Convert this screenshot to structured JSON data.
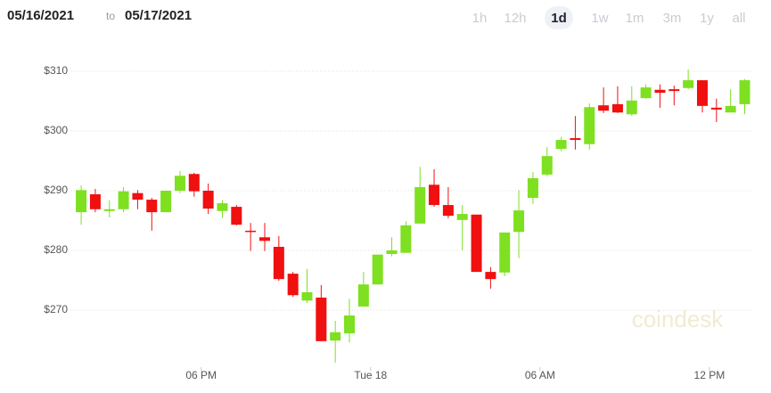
{
  "header": {
    "from": "05/16/2021",
    "sep": "to",
    "to": "05/17/2021",
    "buttons": [
      "1h",
      "12h",
      "1d",
      "1w",
      "1m",
      "3m",
      "1y",
      "all"
    ],
    "selected": "1d"
  },
  "watermark": "coindesk",
  "chart_data": {
    "type": "candlestick",
    "x": [
      13.75,
      14.25,
      14.75,
      15.25,
      15.75,
      16.25,
      16.75,
      17.25,
      17.75,
      18.25,
      18.75,
      19.25,
      19.75,
      20.25,
      20.75,
      21.25,
      21.75,
      22.25,
      22.75,
      23.25,
      23.75,
      24.25,
      24.75,
      25.25,
      25.75,
      26.25,
      26.75,
      27.25,
      27.75,
      28.25,
      28.75,
      29.25,
      29.75,
      30.25,
      30.75,
      31.25,
      31.75,
      32.25,
      32.75,
      33.25,
      33.75,
      34.25,
      34.75,
      35.25,
      35.75,
      36.25,
      36.75,
      37.25
    ],
    "open": [
      286.4,
      289.4,
      286.6,
      286.9,
      289.6,
      288.5,
      286.4,
      290.0,
      292.8,
      290.0,
      286.6,
      287.3,
      283.3,
      282.2,
      280.6,
      276.1,
      271.6,
      272.1,
      264.9,
      266.1,
      270.6,
      274.3,
      279.4,
      279.6,
      284.5,
      291.0,
      287.6,
      285.1,
      286.0,
      276.4,
      276.3,
      283.1,
      288.8,
      292.7,
      297.0,
      298.8,
      297.8,
      304.3,
      304.5,
      302.8,
      305.5,
      306.9,
      307.0,
      307.2,
      308.5,
      303.9,
      303.1,
      304.5
    ],
    "high": [
      290.9,
      290.3,
      288.4,
      290.6,
      290.1,
      288.8,
      290.0,
      293.3,
      293.0,
      291.2,
      288.4,
      287.6,
      284.6,
      284.6,
      282.4,
      276.4,
      276.9,
      274.2,
      268.2,
      271.9,
      276.4,
      279.3,
      282.2,
      284.9,
      294.0,
      293.6,
      290.6,
      287.6,
      286.0,
      277.2,
      283.0,
      290.1,
      293.1,
      297.3,
      299.0,
      302.5,
      304.6,
      307.3,
      307.5,
      307.5,
      307.8,
      307.8,
      307.6,
      310.3,
      308.5,
      305.4,
      307.0,
      308.7
    ],
    "low": [
      284.3,
      286.4,
      285.5,
      286.4,
      286.9,
      283.3,
      286.4,
      289.6,
      289.0,
      286.1,
      285.4,
      284.2,
      279.9,
      279.9,
      274.9,
      272.2,
      271.2,
      264.8,
      261.2,
      264.6,
      270.6,
      274.3,
      279.0,
      279.6,
      284.5,
      287.3,
      285.4,
      280.0,
      276.4,
      273.6,
      275.7,
      278.7,
      287.8,
      292.4,
      296.6,
      296.9,
      296.9,
      303.0,
      303.0,
      302.5,
      305.4,
      303.9,
      304.3,
      307.0,
      303.1,
      301.5,
      303.1,
      302.8
    ],
    "close": [
      290.1,
      286.9,
      286.9,
      289.9,
      288.5,
      286.4,
      290.0,
      292.5,
      289.9,
      287.0,
      287.9,
      284.3,
      283.1,
      281.6,
      275.2,
      272.5,
      273.0,
      264.8,
      266.3,
      269.1,
      274.3,
      279.3,
      280.0,
      284.2,
      290.6,
      287.6,
      285.8,
      286.1,
      276.4,
      275.2,
      283.0,
      286.7,
      292.1,
      295.8,
      298.5,
      298.5,
      304.0,
      303.4,
      303.1,
      305.1,
      307.3,
      306.4,
      306.7,
      308.5,
      304.2,
      303.6,
      304.2,
      308.5
    ],
    "up_color": "#7ee020",
    "down_color": "#f01010",
    "xlim": [
      13.4,
      37.55
    ],
    "ylim": [
      260.5,
      316
    ],
    "xticks": [
      {
        "value": 18,
        "label": "06 PM"
      },
      {
        "value": 24,
        "label": "Tue 18"
      },
      {
        "value": 30,
        "label": "06 AM"
      },
      {
        "value": 36,
        "label": "12 PM"
      }
    ],
    "yticks": [
      {
        "value": 270,
        "label": "$270"
      },
      {
        "value": 280,
        "label": "$280"
      },
      {
        "value": 290,
        "label": "$290"
      },
      {
        "value": 300,
        "label": "$300"
      },
      {
        "value": 310,
        "label": "$310"
      }
    ],
    "grid": true
  }
}
